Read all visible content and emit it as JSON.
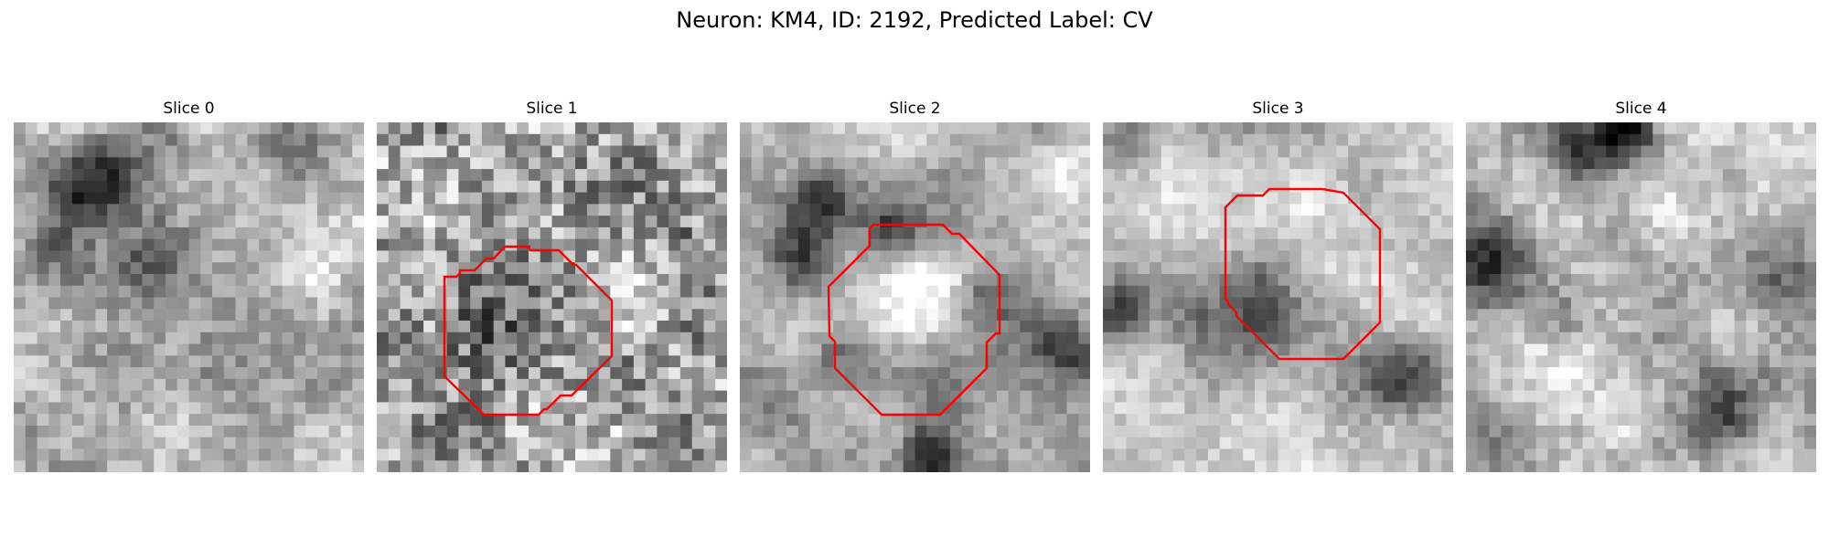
{
  "figure": {
    "suptitle": "Neuron: KM4, ID: 2192, Predicted Label: CV"
  },
  "panels": [
    {
      "title": "Slice 0",
      "has_contour": false
    },
    {
      "title": "Slice 1",
      "has_contour": true
    },
    {
      "title": "Slice 2",
      "has_contour": true
    },
    {
      "title": "Slice 3",
      "has_contour": true
    },
    {
      "title": "Slice 4",
      "has_contour": false
    }
  ],
  "colors": {
    "contour": "#ff0000",
    "background": "#ffffff"
  }
}
